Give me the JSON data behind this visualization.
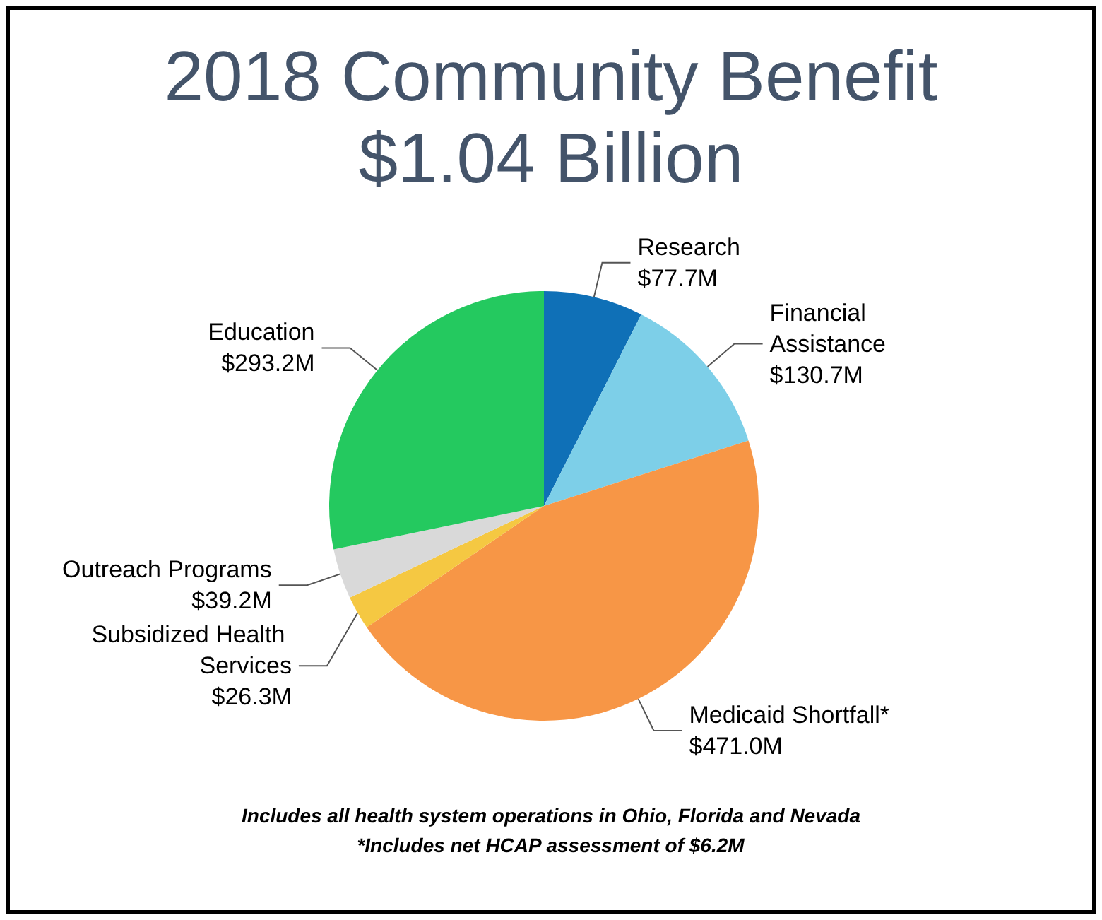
{
  "chart_data": {
    "type": "pie",
    "title": "2018 Community Benefit",
    "subtitle": "$1.04 Billion",
    "categories": [
      "Research",
      "Financial Assistance",
      "Medicaid Shortfall*",
      "Subsidized Health Services",
      "Outreach Programs",
      "Education"
    ],
    "values": [
      77.7,
      130.7,
      471.0,
      26.3,
      39.2,
      293.2
    ],
    "value_labels": [
      "$77.7M",
      "$130.7M",
      "$471.0M",
      "$26.3M",
      "$39.2M",
      "$293.2M"
    ],
    "colors": [
      "#0f70b7",
      "#7dcfe8",
      "#f79646",
      "#f5c842",
      "#d9d9d9",
      "#24c95f"
    ],
    "annotations": [
      "Includes all health system operations in Ohio, Florida and Nevada",
      "*Includes net HCAP assessment of $6.2M"
    ],
    "legend": false
  }
}
